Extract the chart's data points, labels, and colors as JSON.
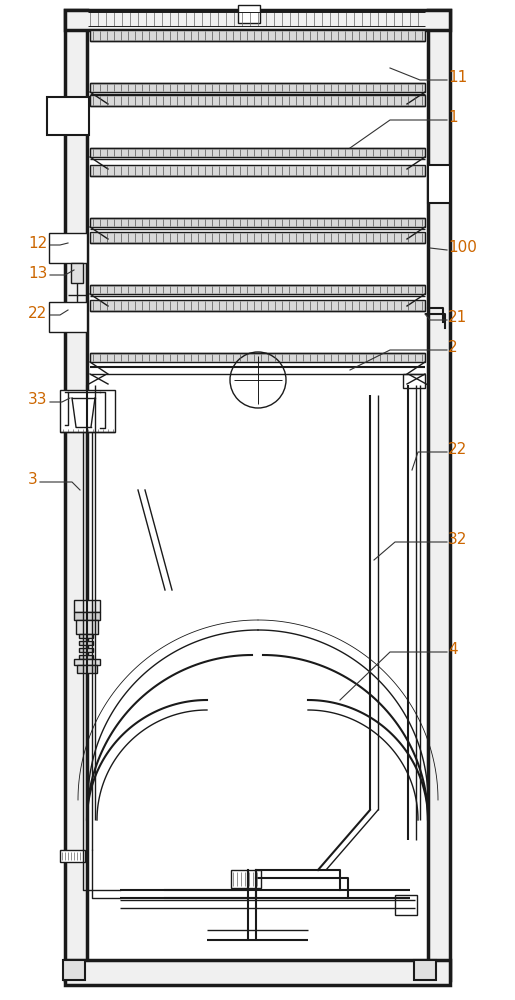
{
  "bg_color": "#ffffff",
  "line_color": "#1a1a1a",
  "label_color": "#cc6600",
  "fig_width": 5.15,
  "fig_height": 10.0,
  "dpi": 100
}
